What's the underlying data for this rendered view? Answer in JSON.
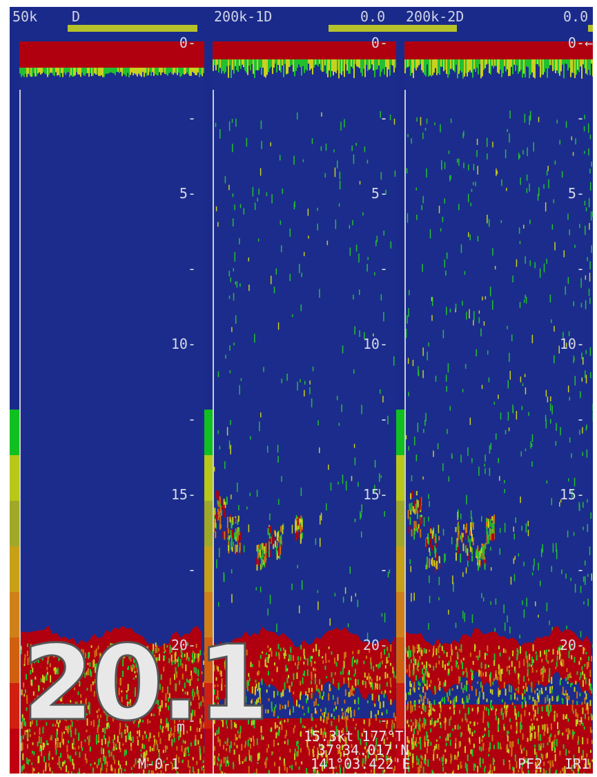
{
  "header": {
    "left_freq": "50k",
    "left_mode": "D",
    "mid_label": "200k-1D",
    "mid_value": "0.0",
    "right_label": "200k-2D",
    "right_value": "0.0"
  },
  "depth_ticks": {
    "major": [
      "0",
      "5",
      "10",
      "15",
      "20"
    ],
    "minor": "-",
    "arrow": "←"
  },
  "colors": {
    "background": "#1c2c8c",
    "strong_echo": "#b00010",
    "orange_echo": "#d07010",
    "yellow_echo": "#c8d020",
    "green_echo": "#22c030",
    "scale_text": "#d6dae8",
    "marker_bar": "#b6c22a"
  },
  "color_bar": [
    "#10c020",
    "#b8c818",
    "#a0a828",
    "#c8a018",
    "#d08018",
    "#d06010",
    "#d02010",
    "#c00010"
  ],
  "bottom_depth": {
    "value": "20.1",
    "unit": "m"
  },
  "status": {
    "mode": "M-0-1",
    "speed_course": "15.3kt 177°T",
    "latitude": "37°34.017'N",
    "longitude": "141°03.422'E",
    "pf": "PF2",
    "ir": "IR1"
  }
}
